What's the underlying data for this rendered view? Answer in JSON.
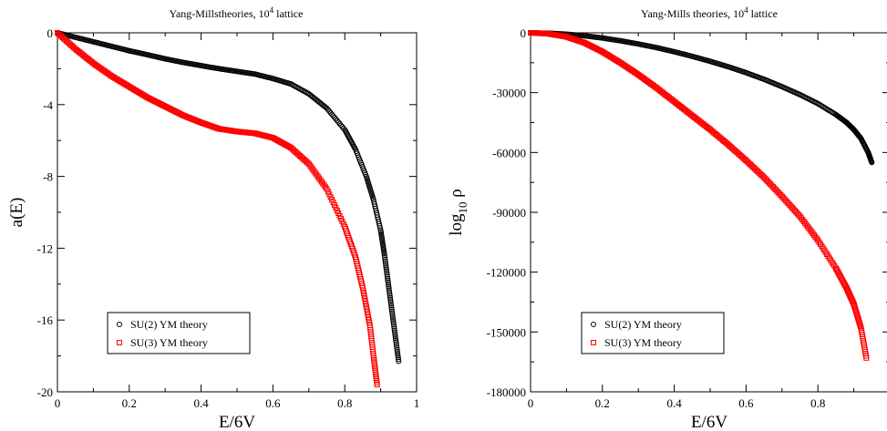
{
  "chart_data": [
    {
      "type": "scatter",
      "title": "Yang-Millstheories, 10",
      "title_superscript": "4",
      "title_suffix": " lattice",
      "xlabel": "E/6V",
      "ylabel": "a(E)",
      "xlim": [
        0,
        1
      ],
      "ylim": [
        -20,
        0
      ],
      "xticks": [
        0,
        0.2,
        0.4,
        0.6,
        0.8,
        1
      ],
      "xtick_labels": [
        "0",
        "0.2",
        "0.4",
        "0.6",
        "0.8",
        "1"
      ],
      "yticks": [
        0,
        -4,
        -8,
        -12,
        -16,
        -20
      ],
      "ytick_labels": [
        "0",
        "-4",
        "-8",
        "-12",
        "-16",
        "-20"
      ],
      "legend_position": "lower-left",
      "series": [
        {
          "name": "SU(2) YM theory",
          "color": "#000000",
          "marker": "circle",
          "x": [
            0,
            0.05,
            0.1,
            0.15,
            0.2,
            0.25,
            0.3,
            0.35,
            0.4,
            0.45,
            0.5,
            0.55,
            0.6,
            0.65,
            0.7,
            0.75,
            0.8,
            0.83,
            0.86,
            0.88,
            0.9,
            0.91,
            0.92,
            0.93,
            0.94,
            0.95
          ],
          "y": [
            0,
            -0.25,
            -0.5,
            -0.75,
            -1.0,
            -1.22,
            -1.45,
            -1.65,
            -1.83,
            -2.0,
            -2.15,
            -2.3,
            -2.55,
            -2.85,
            -3.4,
            -4.2,
            -5.4,
            -6.5,
            -8.0,
            -9.3,
            -11.0,
            -12.3,
            -13.8,
            -15.3,
            -16.8,
            -18.3
          ]
        },
        {
          "name": "SU(3) YM theory",
          "color": "#ff0000",
          "marker": "square",
          "x": [
            0,
            0.05,
            0.1,
            0.15,
            0.2,
            0.25,
            0.3,
            0.35,
            0.4,
            0.45,
            0.5,
            0.55,
            0.6,
            0.65,
            0.7,
            0.75,
            0.8,
            0.83,
            0.85,
            0.87,
            0.88,
            0.89
          ],
          "y": [
            0,
            -0.9,
            -1.7,
            -2.4,
            -3.0,
            -3.6,
            -4.1,
            -4.6,
            -5.0,
            -5.35,
            -5.5,
            -5.6,
            -5.85,
            -6.4,
            -7.3,
            -8.7,
            -10.8,
            -12.5,
            -14.2,
            -16.3,
            -18.0,
            -19.6
          ]
        }
      ]
    },
    {
      "type": "scatter",
      "title": "Yang-Mills theories, 10",
      "title_superscript": "4",
      "title_suffix": " lattice",
      "xlabel": "E/6V",
      "ylabel": "log",
      "ylabel_subscript": "10",
      "ylabel_symbol": "ρ",
      "xlim": [
        0,
        1
      ],
      "ylim": [
        -180000,
        0
      ],
      "xticks": [
        0,
        0.2,
        0.4,
        0.6,
        0.8,
        1
      ],
      "xtick_labels": [
        "0",
        "0.2",
        "0.4",
        "0.6",
        "0.8",
        "1"
      ],
      "yticks": [
        0,
        -30000,
        -60000,
        -90000,
        -120000,
        -150000,
        -180000
      ],
      "ytick_labels": [
        "0",
        "-30000",
        "-60000",
        "-90000",
        "-120000",
        "-150000",
        "-180000"
      ],
      "legend_position": "lower-left",
      "series": [
        {
          "name": "SU(2) YM theory",
          "color": "#000000",
          "marker": "circle",
          "x": [
            0,
            0.05,
            0.1,
            0.15,
            0.2,
            0.25,
            0.3,
            0.35,
            0.4,
            0.45,
            0.5,
            0.55,
            0.6,
            0.65,
            0.7,
            0.75,
            0.8,
            0.85,
            0.88,
            0.9,
            0.92,
            0.94,
            0.95
          ],
          "y": [
            0,
            -200,
            -700,
            -1500,
            -2600,
            -4000,
            -5600,
            -7400,
            -9500,
            -11800,
            -14300,
            -17000,
            -20000,
            -23300,
            -27000,
            -31000,
            -35500,
            -41000,
            -45000,
            -48500,
            -53000,
            -60000,
            -65000
          ]
        },
        {
          "name": "SU(3) YM theory",
          "color": "#ff0000",
          "marker": "square",
          "x": [
            0,
            0.05,
            0.1,
            0.15,
            0.2,
            0.25,
            0.3,
            0.35,
            0.4,
            0.45,
            0.5,
            0.55,
            0.6,
            0.65,
            0.7,
            0.75,
            0.8,
            0.85,
            0.88,
            0.9,
            0.92,
            0.935
          ],
          "y": [
            0,
            -500,
            -2000,
            -5000,
            -9500,
            -15000,
            -21000,
            -27500,
            -34500,
            -41500,
            -48500,
            -56000,
            -64000,
            -72500,
            -82000,
            -92000,
            -104000,
            -118000,
            -128000,
            -136000,
            -148000,
            -163000
          ]
        }
      ]
    }
  ]
}
